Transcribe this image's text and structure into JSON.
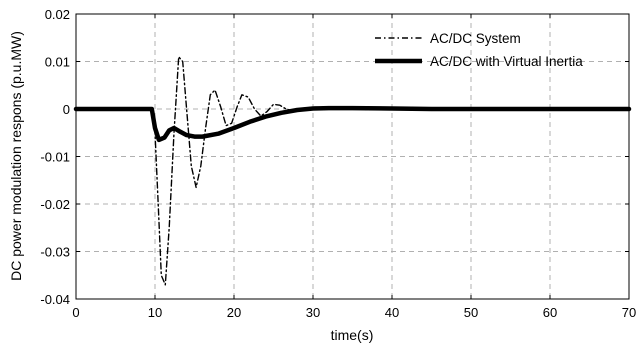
{
  "chart_data": {
    "type": "line",
    "xlabel": "time(s)",
    "ylabel": "DC power modulation respons (p.u.MW)",
    "xlim": [
      0,
      70
    ],
    "ylim": [
      -0.04,
      0.02
    ],
    "xticks": [
      0,
      10,
      20,
      30,
      40,
      50,
      60,
      70
    ],
    "xtick_labels": [
      "0",
      "10",
      "20",
      "30",
      "40",
      "50",
      "60",
      "70"
    ],
    "yticks": [
      -0.04,
      -0.03,
      -0.02,
      -0.01,
      0,
      0.01,
      0.02
    ],
    "ytick_labels": [
      "-0.04",
      "-0.03",
      "-0.02",
      "-0.01",
      "0",
      "0.01",
      "0.02"
    ],
    "grid": true,
    "legend_position": "top-right",
    "series": [
      {
        "name": "AC/DC System",
        "style": "dash-dot",
        "color": "#000000",
        "x": [
          0,
          9.5,
          10.0,
          10.4,
          10.8,
          11.3,
          11.8,
          12.4,
          13.0,
          13.5,
          14.0,
          14.6,
          15.2,
          15.8,
          16.4,
          17.0,
          17.6,
          18.3,
          19.0,
          19.7,
          20.4,
          21.0,
          21.8,
          22.6,
          23.4,
          24.2,
          25.0,
          25.8,
          26.6,
          27.5,
          28.5,
          30,
          40,
          70
        ],
        "y": [
          0,
          0,
          -0.005,
          -0.02,
          -0.035,
          -0.037,
          -0.025,
          -0.005,
          0.011,
          0.01,
          0.0,
          -0.012,
          -0.0165,
          -0.012,
          -0.004,
          0.003,
          0.004,
          0.0005,
          -0.0035,
          -0.003,
          0.0005,
          0.003,
          0.0025,
          0.0,
          -0.0015,
          -0.0005,
          0.001,
          0.0008,
          0.0,
          -0.0004,
          0.0001,
          0.0004,
          0.0003,
          0
        ]
      },
      {
        "name": "AC/DC with Virtual Inertia",
        "style": "solid-thick",
        "color": "#000000",
        "x": [
          0,
          9.6,
          10.0,
          10.5,
          11.2,
          11.8,
          12.4,
          13.2,
          14.0,
          15.0,
          16.0,
          18.0,
          20.0,
          22.0,
          24.0,
          26.0,
          28.0,
          30.0,
          32.0,
          35.0,
          40.0,
          45.0,
          70.0
        ],
        "y": [
          0,
          0,
          -0.004,
          -0.0065,
          -0.006,
          -0.0045,
          -0.004,
          -0.0048,
          -0.0055,
          -0.0058,
          -0.0058,
          -0.0052,
          -0.004,
          -0.0027,
          -0.0016,
          -0.0008,
          -0.0002,
          0.0001,
          0.0002,
          0.0002,
          0.0001,
          0,
          0
        ]
      }
    ]
  }
}
